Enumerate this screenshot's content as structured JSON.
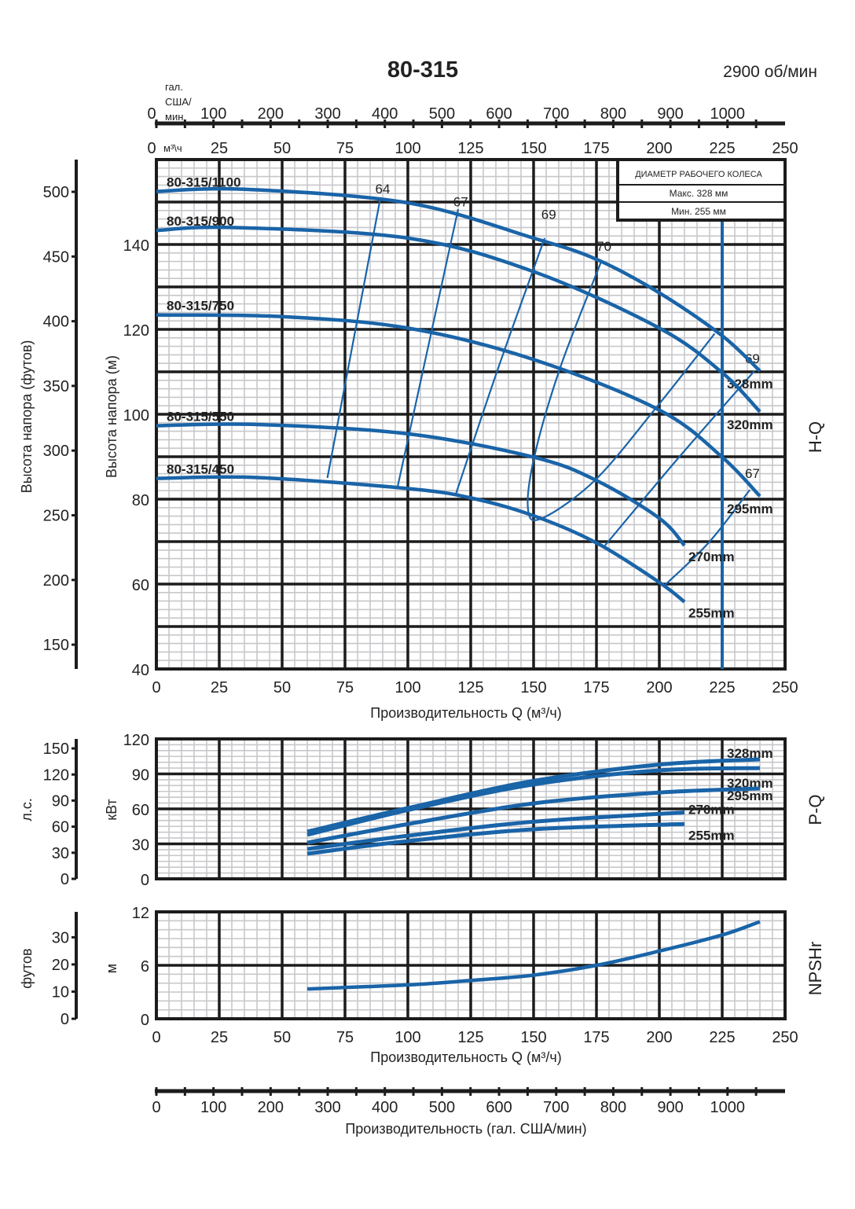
{
  "title": "80-315",
  "speed": "2900 об/мин",
  "colors": {
    "curve": "#1a64a8",
    "grid_major": "#1c1c1c",
    "grid_minor": "#c8c8cc"
  },
  "top_axes": {
    "gal_unit": [
      "гал.",
      "США/",
      "мин"
    ],
    "gal_ticks": [
      "0",
      "100",
      "200",
      "300",
      "400",
      "500",
      "600",
      "700",
      "800",
      "900",
      "1000"
    ],
    "m3_unit": "м³\\ч",
    "m3_ticks": [
      "0",
      "25",
      "50",
      "75",
      "100",
      "125",
      "150",
      "175",
      "200",
      "225",
      "250"
    ]
  },
  "legend_box": {
    "title": "ДИАМЕТР РАБОЧЕГО КОЛЕСА",
    "max": "Макс. 328 мм",
    "min": "Мин. 255 мм"
  },
  "chart_data": [
    {
      "type": "line",
      "id": "H-Q",
      "side_label": "H-Q",
      "xlabel": "Производительность Q (м³/ч)",
      "ylabel": "Высота напора (м)",
      "ylabel_secondary": "Высота напора (футов)",
      "xlim": [
        0,
        250
      ],
      "ylim": [
        40,
        160
      ],
      "x_ticks": [
        0,
        25,
        50,
        75,
        100,
        125,
        150,
        175,
        200,
        225,
        250
      ],
      "y_ticks": [
        40,
        60,
        80,
        100,
        120,
        140
      ],
      "y2_ticks": [
        150,
        200,
        250,
        300,
        350,
        400,
        450,
        500
      ],
      "grid": true,
      "series": [
        {
          "name": "80-315/1100",
          "end_label": "328mm",
          "x": [
            0,
            35,
            100,
            150,
            175,
            200,
            225,
            240
          ],
          "y": [
            152.5,
            153,
            149.8,
            141.5,
            136.5,
            128.6,
            118.5,
            110.2
          ]
        },
        {
          "name": "80-315/900",
          "end_label": "320mm",
          "x": [
            0,
            30,
            100,
            150,
            200,
            225,
            240
          ],
          "y": [
            143.3,
            144,
            141.5,
            133.6,
            120.3,
            109.8,
            100.6
          ]
        },
        {
          "name": "80-315/750",
          "end_label": "295mm",
          "x": [
            0,
            50,
            100,
            150,
            200,
            225,
            240
          ],
          "y": [
            123.4,
            123,
            120.3,
            112.9,
            101,
            89.9,
            80.7
          ]
        },
        {
          "name": "80-315/550",
          "end_label": "270mm",
          "x": [
            0,
            40,
            100,
            150,
            175,
            200,
            210
          ],
          "y": [
            97.3,
            97.6,
            95.4,
            89.9,
            84.4,
            75.5,
            69.1
          ]
        },
        {
          "name": "80-315/450",
          "end_label": "255mm",
          "x": [
            0,
            40,
            100,
            125,
            150,
            175,
            200,
            210
          ],
          "y": [
            84.9,
            85.1,
            82.5,
            80.3,
            76.1,
            69.7,
            60.4,
            55.8
          ]
        }
      ],
      "efficiency_lines": [
        {
          "label": "64",
          "x": [
            68,
            89
          ],
          "y": [
            85,
            150.7
          ]
        },
        {
          "label": "67",
          "x": [
            96,
            120
          ],
          "y": [
            83.1,
            148.3
          ]
        },
        {
          "label": "69",
          "x": [
            118.8,
            136,
            154.4
          ],
          "y": [
            80.7,
            111,
            141.5
          ]
        },
        {
          "label": "70",
          "x": [
            176.9,
            160.6,
            150.3,
            147.8,
            153.4,
            174.3,
            198,
            222
          ],
          "y": [
            136,
            111,
            90,
            77.6,
            75.5,
            84.4,
            101,
            119
          ]
        },
        {
          "label": "69",
          "x": [
            178.4,
            208,
            237.8
          ],
          "y": [
            69.1,
            90,
            110.2
          ]
        },
        {
          "label": "67",
          "x": [
            202.5,
            220,
            236
          ],
          "y": [
            59.9,
            70,
            82.2
          ]
        }
      ],
      "marker_line_x": 225
    },
    {
      "type": "line",
      "id": "P-Q",
      "side_label": "P-Q",
      "ylabel": "кВт",
      "ylabel_secondary": "л.с.",
      "xlim": [
        0,
        250
      ],
      "ylim": [
        0,
        120
      ],
      "y_ticks": [
        0,
        30,
        60,
        90,
        120
      ],
      "y2_ticks": [
        0,
        30,
        60,
        90,
        120,
        150
      ],
      "grid": true,
      "series": [
        {
          "end_label": "328mm",
          "x": [
            60,
            100,
            150,
            200,
            240
          ],
          "y": [
            40.5,
            60.7,
            84,
            98,
            102.5
          ]
        },
        {
          "end_label": "320mm",
          "x": [
            60,
            100,
            150,
            200,
            240
          ],
          "y": [
            37.8,
            59,
            81,
            93,
            95
          ]
        },
        {
          "end_label": "295mm",
          "x": [
            60,
            100,
            150,
            200,
            240
          ],
          "y": [
            31,
            47,
            64.7,
            74,
            77.5
          ]
        },
        {
          "end_label": "270mm",
          "x": [
            60,
            100,
            150,
            210
          ],
          "y": [
            25.6,
            37,
            49,
            57
          ]
        },
        {
          "end_label": "255mm",
          "x": [
            60,
            100,
            150,
            210
          ],
          "y": [
            21.6,
            32.4,
            42.5,
            47
          ]
        }
      ]
    },
    {
      "type": "line",
      "id": "NPSHr",
      "side_label": "NPSHr",
      "xlabel": "Производительность Q (м³/ч)",
      "ylabel": "м",
      "ylabel_secondary": "футов",
      "xlim": [
        0,
        250
      ],
      "ylim": [
        0,
        12
      ],
      "x_ticks": [
        0,
        25,
        50,
        75,
        100,
        125,
        150,
        175,
        200,
        225,
        250
      ],
      "y_ticks": [
        0,
        6,
        12
      ],
      "y2_ticks": [
        0,
        10,
        20,
        30
      ],
      "grid": true,
      "series": [
        {
          "x": [
            60,
            100,
            125,
            150,
            175,
            200,
            225,
            240
          ],
          "y": [
            3.35,
            3.8,
            4.3,
            4.9,
            6,
            7.6,
            9.4,
            10.9
          ]
        }
      ]
    }
  ],
  "bottom_axis": {
    "ticks": [
      "0",
      "100",
      "200",
      "300",
      "400",
      "500",
      "600",
      "700",
      "800",
      "900",
      "1000"
    ],
    "label": "Производительность (гал. США/мин)"
  }
}
